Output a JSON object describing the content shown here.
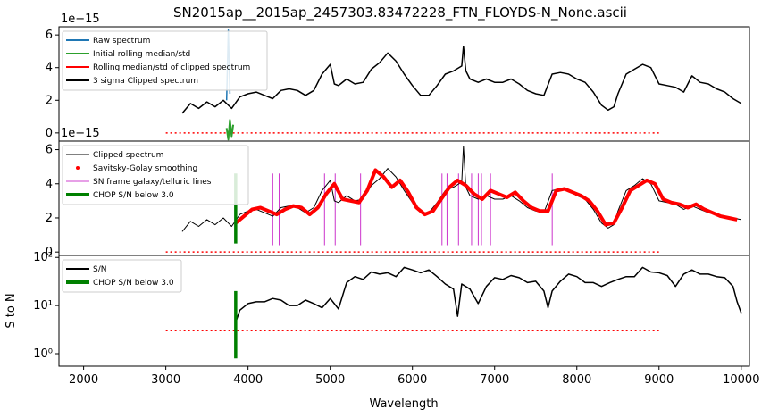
{
  "title": "SN2015ap__2015ap_2457303.83472228_FTN_FLOYDS-N_None.ascii",
  "colors": {
    "raw": "#1f77b4",
    "initial": "#2ca02c",
    "rolling": "#ff0000",
    "clipped": "#000000",
    "savgol": "#ff0000",
    "lines": "#bf00bf",
    "chop": "#008000",
    "threshold": "#ff0000"
  },
  "chart_data": [
    {
      "type": "line",
      "panel": "top",
      "offset_label": "1e−15",
      "ylim": [
        -0.5,
        6.5
      ],
      "xlim": [
        1700,
        10100
      ],
      "yticks": [
        0,
        2,
        4,
        6
      ],
      "ytick_labels": [
        "0",
        "2",
        "4",
        "6"
      ],
      "legend": {
        "placement": "upper-left",
        "entries": [
          "Raw spectrum",
          "Initial rolling median/std",
          "Rolling median/std of clipped spectrum",
          "3 sigma Clipped spectrum"
        ]
      },
      "threshold_line": {
        "x": [
          3000,
          9000
        ],
        "y": 0
      },
      "series": [
        {
          "name": "3 sigma Clipped spectrum",
          "x": [
            3200,
            3300,
            3400,
            3500,
            3600,
            3700,
            3800,
            3900,
            4000,
            4100,
            4200,
            4300,
            4400,
            4500,
            4600,
            4700,
            4800,
            4900,
            5000,
            5050,
            5100,
            5200,
            5300,
            5400,
            5500,
            5600,
            5700,
            5800,
            5900,
            6000,
            6100,
            6200,
            6300,
            6400,
            6500,
            6600,
            6620,
            6650,
            6700,
            6800,
            6900,
            7000,
            7100,
            7200,
            7300,
            7400,
            7500,
            7600,
            7700,
            7800,
            7900,
            8000,
            8100,
            8200,
            8300,
            8380,
            8450,
            8500,
            8600,
            8700,
            8800,
            8900,
            9000,
            9100,
            9200,
            9300,
            9400,
            9500,
            9600,
            9700,
            9800,
            9900,
            10000
          ],
          "y": [
            1.2,
            1.8,
            1.5,
            1.9,
            1.6,
            2.0,
            1.5,
            2.2,
            2.4,
            2.5,
            2.3,
            2.1,
            2.6,
            2.7,
            2.6,
            2.3,
            2.6,
            3.6,
            4.2,
            3.0,
            2.9,
            3.3,
            3.0,
            3.1,
            3.9,
            4.3,
            4.9,
            4.4,
            3.6,
            2.9,
            2.3,
            2.3,
            2.9,
            3.6,
            3.8,
            4.1,
            5.3,
            3.8,
            3.3,
            3.1,
            3.3,
            3.1,
            3.1,
            3.3,
            3.0,
            2.6,
            2.4,
            2.3,
            3.6,
            3.7,
            3.6,
            3.3,
            3.1,
            2.5,
            1.7,
            1.4,
            1.6,
            2.4,
            3.6,
            3.9,
            4.2,
            4.0,
            3.0,
            2.9,
            2.8,
            2.5,
            3.5,
            3.1,
            3.0,
            2.7,
            2.5,
            2.1,
            1.8
          ]
        },
        {
          "name": "Initial rolling median/std",
          "x": [
            3740,
            3760,
            3780,
            3800,
            3820
          ],
          "y": [
            0.3,
            -0.4,
            0.8,
            -0.2,
            0.5
          ]
        },
        {
          "name": "Raw spectrum",
          "x": [
            3740,
            3760,
            3780
          ],
          "y": [
            2.0,
            6.3,
            2.4
          ]
        }
      ]
    },
    {
      "type": "line",
      "panel": "middle",
      "offset_label": "1e−15",
      "ylim": [
        -0.2,
        6.5
      ],
      "xlim": [
        1700,
        10100
      ],
      "yticks": [
        0,
        2,
        4,
        6
      ],
      "ytick_labels": [
        "0",
        "2",
        "4",
        "6"
      ],
      "legend": {
        "placement": "upper-left",
        "entries": [
          "Clipped spectrum",
          "Savitsky-Golay smoothing",
          "SN frame galaxy/telluric lines",
          "CHOP S/N below 3.0"
        ]
      },
      "threshold_line": {
        "x": [
          3000,
          9000
        ],
        "y": 0
      },
      "chop_line": {
        "x": 3850,
        "y": [
          0.5,
          4.6
        ]
      },
      "telluric_lines_x": [
        4300,
        4380,
        4930,
        5010,
        5060,
        5370,
        6360,
        6420,
        6560,
        6720,
        6800,
        6840,
        6950,
        7700
      ],
      "series": [
        {
          "name": "Clipped spectrum",
          "x": [
            3200,
            3300,
            3400,
            3500,
            3600,
            3700,
            3800,
            3900,
            4000,
            4100,
            4200,
            4300,
            4400,
            4500,
            4600,
            4700,
            4800,
            4900,
            5000,
            5050,
            5100,
            5200,
            5300,
            5400,
            5500,
            5600,
            5700,
            5800,
            5900,
            6000,
            6100,
            6200,
            6300,
            6400,
            6500,
            6600,
            6620,
            6650,
            6700,
            6800,
            6900,
            7000,
            7100,
            7200,
            7300,
            7400,
            7500,
            7600,
            7700,
            7800,
            7900,
            8000,
            8100,
            8200,
            8300,
            8380,
            8450,
            8500,
            8600,
            8700,
            8800,
            8900,
            9000,
            9100,
            9200,
            9300,
            9400,
            9500,
            9600,
            9700,
            9800,
            9900,
            10000
          ],
          "y": [
            1.2,
            1.8,
            1.5,
            1.9,
            1.6,
            2.0,
            1.5,
            2.2,
            2.4,
            2.5,
            2.3,
            2.1,
            2.6,
            2.7,
            2.6,
            2.3,
            2.6,
            3.6,
            4.2,
            3.0,
            2.9,
            3.3,
            3.0,
            3.1,
            3.9,
            4.3,
            4.9,
            4.4,
            3.6,
            2.9,
            2.3,
            2.3,
            2.9,
            3.6,
            3.8,
            4.1,
            6.2,
            3.8,
            3.3,
            3.1,
            3.3,
            3.1,
            3.1,
            3.3,
            3.0,
            2.6,
            2.4,
            2.3,
            3.6,
            3.7,
            3.6,
            3.3,
            3.1,
            2.5,
            1.7,
            1.4,
            1.6,
            2.4,
            3.6,
            3.9,
            4.3,
            4.0,
            3.0,
            2.9,
            2.8,
            2.5,
            2.7,
            2.5,
            2.3,
            2.2,
            2.1,
            2.0,
            1.9
          ]
        },
        {
          "name": "Savitsky-Golay smoothing",
          "x": [
            3850,
            3950,
            4050,
            4150,
            4250,
            4350,
            4450,
            4550,
            4650,
            4750,
            4850,
            4950,
            5050,
            5150,
            5250,
            5350,
            5450,
            5550,
            5650,
            5750,
            5850,
            5950,
            6050,
            6150,
            6250,
            6350,
            6450,
            6550,
            6650,
            6750,
            6850,
            6950,
            7050,
            7150,
            7250,
            7350,
            7450,
            7550,
            7650,
            7750,
            7850,
            7950,
            8050,
            8150,
            8250,
            8350,
            8450,
            8550,
            8650,
            8750,
            8850,
            8950,
            9050,
            9150,
            9250,
            9350,
            9450,
            9550,
            9650,
            9750,
            9850,
            9950
          ],
          "y": [
            1.7,
            2.1,
            2.5,
            2.6,
            2.4,
            2.2,
            2.5,
            2.7,
            2.6,
            2.2,
            2.6,
            3.4,
            4.0,
            3.1,
            3.0,
            2.9,
            3.6,
            4.8,
            4.4,
            3.8,
            4.2,
            3.5,
            2.6,
            2.2,
            2.4,
            3.1,
            3.8,
            4.2,
            3.9,
            3.4,
            3.1,
            3.6,
            3.4,
            3.2,
            3.5,
            3.0,
            2.6,
            2.4,
            2.4,
            3.6,
            3.7,
            3.5,
            3.3,
            3.0,
            2.4,
            1.6,
            1.7,
            2.6,
            3.6,
            3.9,
            4.2,
            4.0,
            3.1,
            2.9,
            2.8,
            2.6,
            2.8,
            2.5,
            2.3,
            2.1,
            2.0,
            1.9
          ]
        }
      ]
    },
    {
      "type": "line",
      "panel": "bottom",
      "scale": "log",
      "ylabel": "S to N",
      "xlabel": "Wavelength",
      "ylim": [
        0.55,
        110
      ],
      "xlim": [
        1700,
        10100
      ],
      "yticks": [
        1,
        10,
        100
      ],
      "ytick_labels": [
        "10⁰",
        "10¹",
        "10²"
      ],
      "xticks": [
        2000,
        3000,
        4000,
        5000,
        6000,
        7000,
        8000,
        9000,
        10000
      ],
      "xtick_labels": [
        "2000",
        "3000",
        "4000",
        "5000",
        "6000",
        "7000",
        "8000",
        "9000",
        "10000"
      ],
      "legend": {
        "placement": "upper-left",
        "entries": [
          "S/N",
          "CHOP S/N below 3.0"
        ]
      },
      "threshold_line": {
        "x": [
          3000,
          9000
        ],
        "y": 3.0
      },
      "chop_line": {
        "x": 3850,
        "y": [
          0.8,
          20
        ]
      },
      "series": [
        {
          "name": "S/N",
          "x": [
            3850,
            3900,
            4000,
            4100,
            4200,
            4300,
            4400,
            4500,
            4600,
            4700,
            4800,
            4900,
            5000,
            5100,
            5200,
            5300,
            5400,
            5500,
            5600,
            5700,
            5800,
            5900,
            6000,
            6100,
            6200,
            6300,
            6400,
            6500,
            6550,
            6600,
            6700,
            6800,
            6900,
            7000,
            7100,
            7200,
            7300,
            7400,
            7500,
            7600,
            7650,
            7700,
            7800,
            7900,
            8000,
            8100,
            8200,
            8300,
            8400,
            8500,
            8600,
            8700,
            8800,
            8900,
            9000,
            9100,
            9200,
            9300,
            9400,
            9500,
            9600,
            9700,
            9800,
            9900,
            9950,
            10000
          ],
          "y": [
            4.5,
            8,
            11,
            12,
            12,
            14,
            13,
            10,
            10,
            13,
            11,
            9,
            14,
            8.5,
            30,
            40,
            35,
            50,
            45,
            48,
            40,
            62,
            55,
            48,
            55,
            40,
            28,
            22,
            6,
            28,
            22,
            11,
            25,
            38,
            35,
            42,
            38,
            30,
            32,
            20,
            9,
            20,
            32,
            45,
            40,
            30,
            30,
            25,
            30,
            35,
            40,
            40,
            62,
            50,
            48,
            42,
            25,
            45,
            55,
            45,
            45,
            40,
            38,
            25,
            12,
            7
          ]
        }
      ]
    }
  ]
}
